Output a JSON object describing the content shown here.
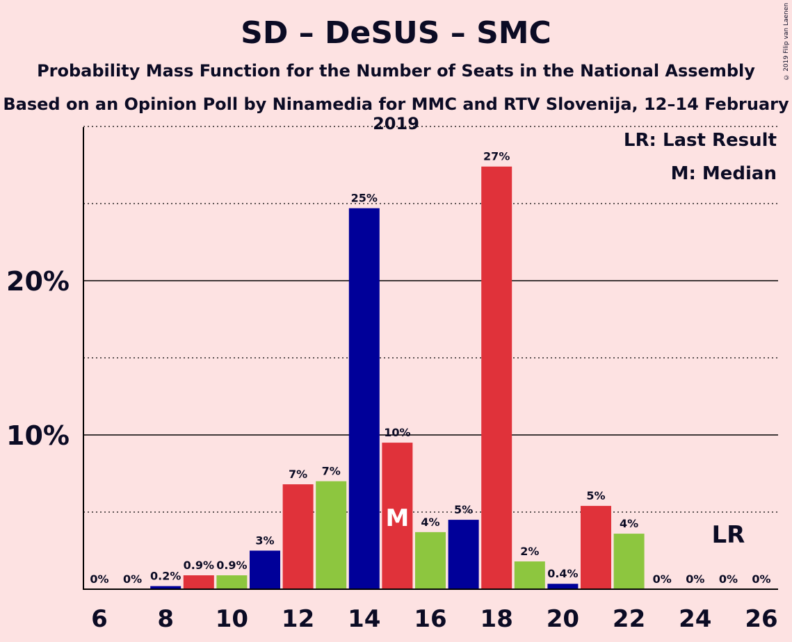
{
  "chart_data": {
    "type": "bar",
    "title": "SD – DeSUS – SMC",
    "subtitle": "Probability Mass Function for the Number of Seats in the National Assembly",
    "subtitle2": "Based on an Opinion Poll by Ninamedia for MMC and RTV Slovenija, 12–14 February 2019",
    "copyright": "© 2019 Filip van Laenen",
    "legend": {
      "lr": "LR: Last Result",
      "median": "M: Median"
    },
    "y_ticks": [
      {
        "value": 10,
        "label": "10%"
      },
      {
        "value": 20,
        "label": "20%"
      }
    ],
    "x_ticks": [
      "6",
      "8",
      "10",
      "12",
      "14",
      "16",
      "18",
      "20",
      "22",
      "24",
      "26"
    ],
    "ylim": [
      0,
      30
    ],
    "colors": {
      "blue": "#000099",
      "red": "#E0323A",
      "green": "#8DC63F"
    },
    "series": [
      {
        "seats": 6,
        "value": 0,
        "label": "0%",
        "color": "blue"
      },
      {
        "seats": 7,
        "value": 0,
        "label": "0%",
        "color": "red"
      },
      {
        "seats": 8,
        "value": 0.2,
        "label": "0.2%",
        "color": "blue"
      },
      {
        "seats": 9,
        "value": 0.9,
        "label": "0.9%",
        "color": "red"
      },
      {
        "seats": 10,
        "value": 0.9,
        "label": "0.9%",
        "color": "green"
      },
      {
        "seats": 11,
        "value": 2.5,
        "label": "3%",
        "color": "blue"
      },
      {
        "seats": 12,
        "value": 6.8,
        "label": "7%",
        "color": "red"
      },
      {
        "seats": 13,
        "value": 7.0,
        "label": "7%",
        "color": "green"
      },
      {
        "seats": 14,
        "value": 24.7,
        "label": "25%",
        "color": "blue"
      },
      {
        "seats": 15,
        "value": 9.5,
        "label": "10%",
        "color": "red",
        "marker": "M"
      },
      {
        "seats": 16,
        "value": 3.7,
        "label": "4%",
        "color": "green"
      },
      {
        "seats": 17,
        "value": 4.5,
        "label": "5%",
        "color": "blue"
      },
      {
        "seats": 18,
        "value": 27.4,
        "label": "27%",
        "color": "red"
      },
      {
        "seats": 19,
        "value": 1.8,
        "label": "2%",
        "color": "green"
      },
      {
        "seats": 20,
        "value": 0.35,
        "label": "0.4%",
        "color": "blue"
      },
      {
        "seats": 21,
        "value": 5.4,
        "label": "5%",
        "color": "red"
      },
      {
        "seats": 22,
        "value": 3.6,
        "label": "4%",
        "color": "green"
      },
      {
        "seats": 23,
        "value": 0,
        "label": "0%",
        "color": "blue"
      },
      {
        "seats": 24,
        "value": 0,
        "label": "0%",
        "color": "red"
      },
      {
        "seats": 25,
        "value": 0,
        "label": "0%",
        "color": "green",
        "marker": "LR"
      },
      {
        "seats": 26,
        "value": 0,
        "label": "0%",
        "color": "blue"
      }
    ]
  }
}
